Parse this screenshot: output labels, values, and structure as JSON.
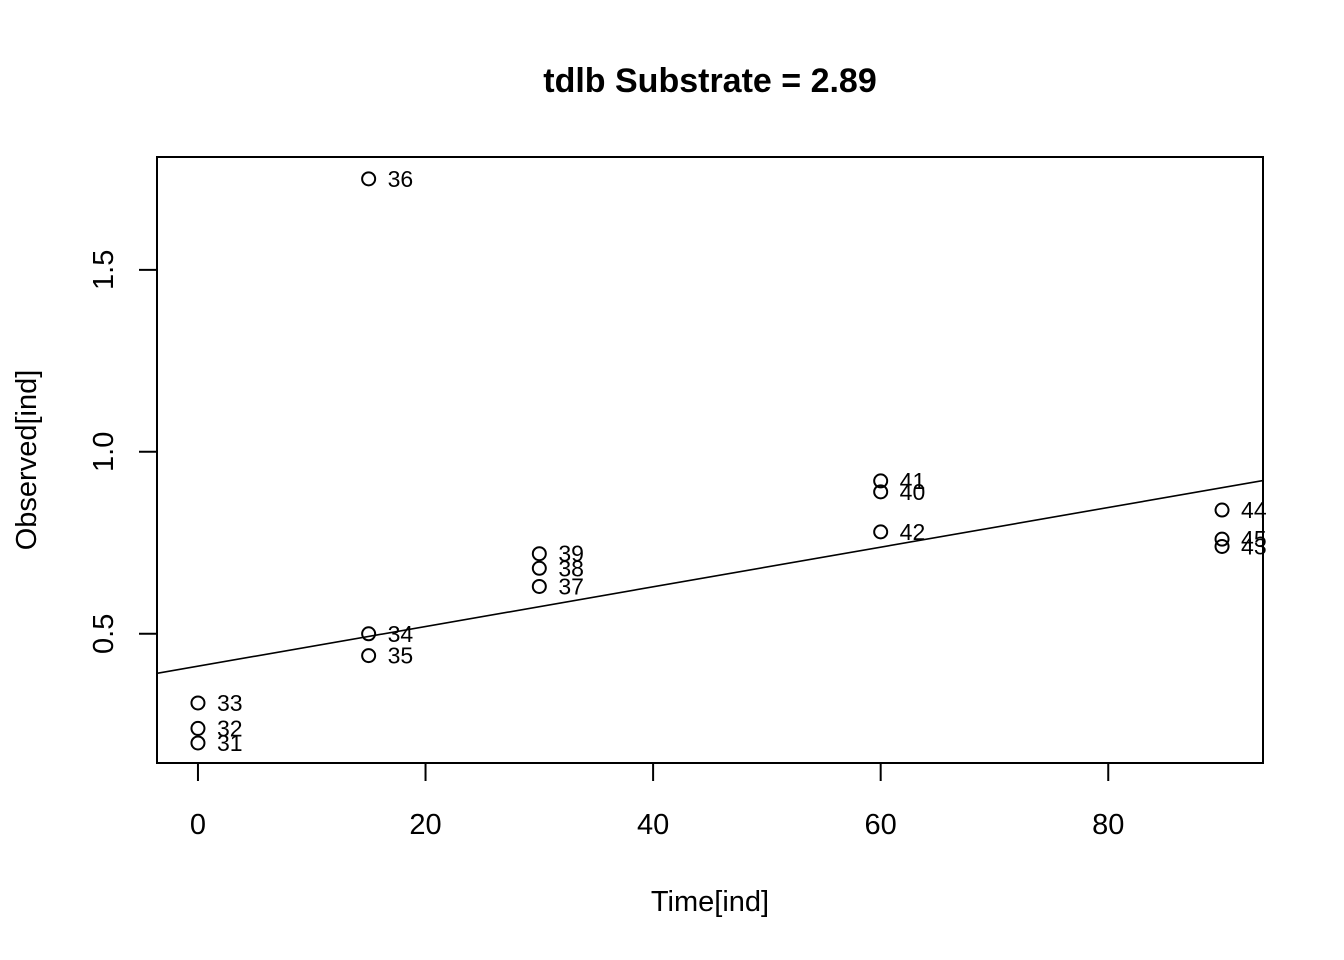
{
  "chart_data": {
    "type": "scatter",
    "title": "tdlb Substrate = 2.89",
    "xlabel": "Time[ind]",
    "ylabel": "Observed[ind]",
    "xlim": [
      -3.6,
      93.6
    ],
    "ylim": [
      0.145,
      1.81
    ],
    "xticks": [
      0,
      20,
      40,
      60,
      80
    ],
    "yticks": [
      0.5,
      1.0,
      1.5
    ],
    "ytick_labels": [
      "0.5",
      "1.0",
      "1.5"
    ],
    "points": [
      {
        "label": "31",
        "x": 0,
        "y": 0.2
      },
      {
        "label": "32",
        "x": 0,
        "y": 0.24
      },
      {
        "label": "33",
        "x": 0,
        "y": 0.31
      },
      {
        "label": "34",
        "x": 15,
        "y": 0.5
      },
      {
        "label": "35",
        "x": 15,
        "y": 0.44
      },
      {
        "label": "36",
        "x": 15,
        "y": 1.75
      },
      {
        "label": "37",
        "x": 30,
        "y": 0.63
      },
      {
        "label": "38",
        "x": 30,
        "y": 0.68
      },
      {
        "label": "39",
        "x": 30,
        "y": 0.72
      },
      {
        "label": "40",
        "x": 60,
        "y": 0.89
      },
      {
        "label": "41",
        "x": 60,
        "y": 0.92
      },
      {
        "label": "42",
        "x": 60,
        "y": 0.78
      },
      {
        "label": "43",
        "x": 90,
        "y": 0.74
      },
      {
        "label": "44",
        "x": 90,
        "y": 0.84
      },
      {
        "label": "45",
        "x": 90,
        "y": 0.76
      }
    ],
    "fit_line": {
      "intercept": 0.411,
      "slope": 0.00545
    },
    "grid": false,
    "legend": "none"
  }
}
